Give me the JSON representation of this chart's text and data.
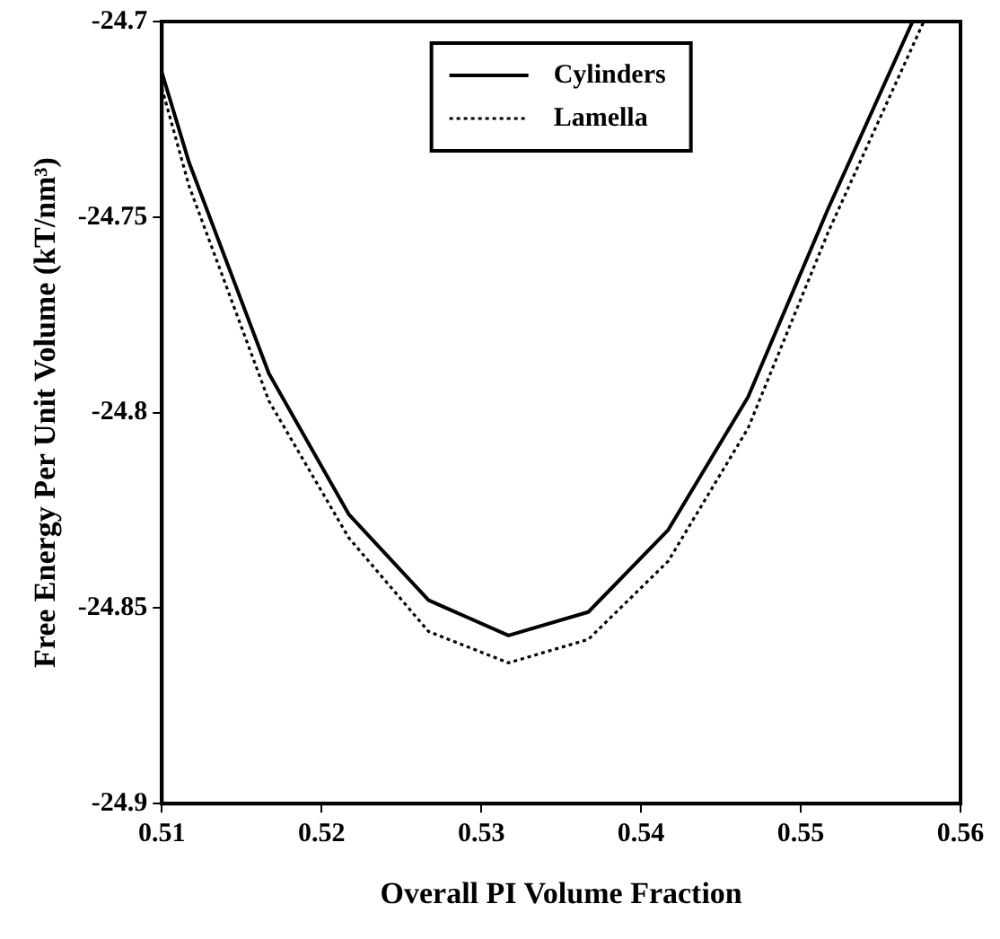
{
  "chart_data": {
    "type": "line",
    "xlabel": "Overall PI Volume Fraction",
    "ylabel": "Free Energy Per Unit Volume (kT/nm³)",
    "xlim": [
      0.51,
      0.56
    ],
    "xticks": [
      0.51,
      0.52,
      0.53,
      0.54,
      0.55,
      0.56
    ],
    "ylim": [
      -24.9,
      -24.7
    ],
    "yticks": [
      -24.9,
      -24.85,
      -24.8,
      -24.75,
      -24.7
    ],
    "grid": false,
    "legend": "top",
    "marker": "none",
    "series": [
      {
        "name": "Cylinders",
        "color": "#000000",
        "line_style": "solid",
        "x": [
          0.51,
          0.5117,
          0.5167,
          0.5217,
          0.5267,
          0.5317,
          0.5367,
          0.5417,
          0.5467,
          0.5517,
          0.557
        ],
        "values": [
          -24.713,
          -24.736,
          -24.79,
          -24.826,
          -24.848,
          -24.857,
          -24.851,
          -24.83,
          -24.796,
          -24.748,
          -24.7
        ]
      },
      {
        "name": "Lamella",
        "color": "#000000",
        "line_style": "dotted",
        "x": [
          0.51,
          0.5117,
          0.5167,
          0.5217,
          0.5267,
          0.5317,
          0.5367,
          0.5417,
          0.5467,
          0.5517,
          0.5577
        ],
        "values": [
          -24.717,
          -24.742,
          -24.797,
          -24.832,
          -24.856,
          -24.864,
          -24.858,
          -24.838,
          -24.804,
          -24.754,
          -24.7
        ]
      }
    ]
  }
}
